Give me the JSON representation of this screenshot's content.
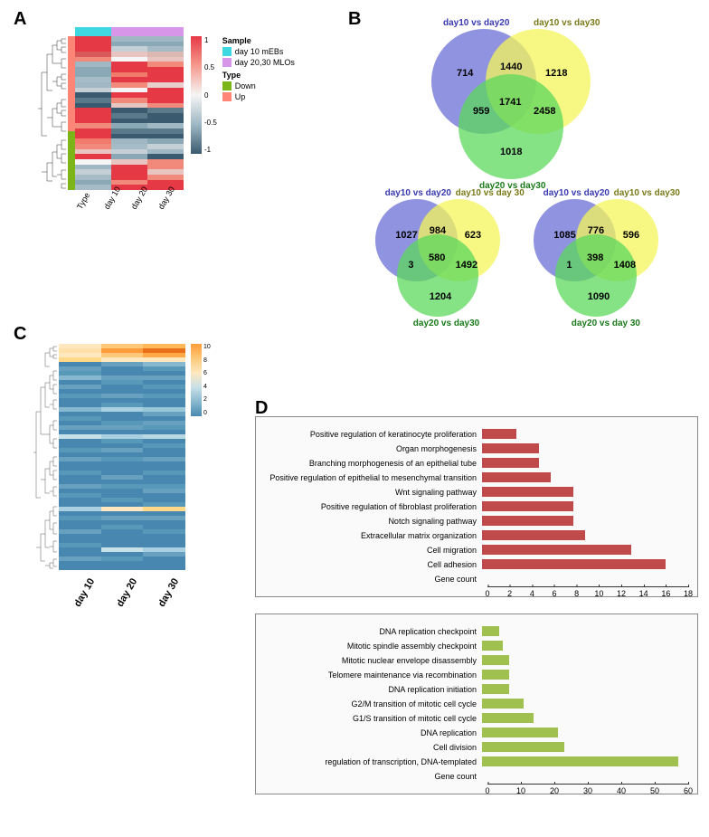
{
  "panelA": {
    "label": "A",
    "sample_bar_colors": [
      "#40d8e0",
      "#d896e8",
      "#d896e8"
    ],
    "x_labels": [
      "Type",
      "day 10",
      "day 20",
      "day 30"
    ],
    "legend": {
      "title_sample": "Sample",
      "sample_items": [
        {
          "label": "day 10 mEBs",
          "color": "#40d8e0"
        },
        {
          "label": "day 20,30 MLOs",
          "color": "#d896e8"
        }
      ],
      "title_type": "Type",
      "type_items": [
        {
          "label": "Down",
          "color": "#7cb518"
        },
        {
          "label": "Up",
          "color": "#ff8577"
        }
      ],
      "scale_values": [
        "1",
        "0.5",
        "0",
        "-0.5",
        "-1"
      ],
      "scale_colors": [
        "#e63946",
        "#f59a8e",
        "#f5f5f5",
        "#9fb8c4",
        "#3a5a70"
      ]
    },
    "type_bar_segments": [
      {
        "color": "#ff8577",
        "height": 62
      },
      {
        "color": "#7cb518",
        "height": 38
      }
    ],
    "heatmap_rows": [
      [
        "#e63946",
        "#9fb8c4",
        "#9fb8c4"
      ],
      [
        "#e63946",
        "#8aa8b5",
        "#8aa8b5"
      ],
      [
        "#e63946",
        "#c4d0d6",
        "#a5bcc7"
      ],
      [
        "#d95a5a",
        "#e8c5c0",
        "#dcb8b3"
      ],
      [
        "#f28a7c",
        "#f5f5f5",
        "#e8c5c0"
      ],
      [
        "#9fb8c4",
        "#e63946",
        "#f28a7c"
      ],
      [
        "#8aa8b5",
        "#e63946",
        "#e63946"
      ],
      [
        "#8aa8b5",
        "#f07a6c",
        "#e63946"
      ],
      [
        "#a5bcc7",
        "#e63946",
        "#e63946"
      ],
      [
        "#9fb8c4",
        "#f28a7c",
        "#e8d0cc"
      ],
      [
        "#c4d0d6",
        "#f5f5f5",
        "#e63946"
      ],
      [
        "#3a5a70",
        "#e63946",
        "#e63946"
      ],
      [
        "#5a7a8a",
        "#f28a7c",
        "#e63946"
      ],
      [
        "#3a5a70",
        "#e8c5c0",
        "#f28a7c"
      ],
      [
        "#e63946",
        "#3a5a70",
        "#5a7a8a"
      ],
      [
        "#e63946",
        "#5a7a8a",
        "#3a5a70"
      ],
      [
        "#e63946",
        "#3a5a70",
        "#3a5a70"
      ],
      [
        "#f28a7c",
        "#8aa8b5",
        "#9fb8c4"
      ],
      [
        "#e63946",
        "#5a7a8a",
        "#5a7a8a"
      ],
      [
        "#e63946",
        "#3a5a70",
        "#3a5a70"
      ],
      [
        "#f07a6c",
        "#9fb8c4",
        "#8aa8b5"
      ],
      [
        "#f28a7c",
        "#a5bcc7",
        "#c4d0d6"
      ],
      [
        "#e8c5c0",
        "#c4d0d6",
        "#9fb8c4"
      ],
      [
        "#e63946",
        "#8aa8b5",
        "#3a5a70"
      ],
      [
        "#f5f5f5",
        "#e8c5c0",
        "#f28a7c"
      ],
      [
        "#9fb8c4",
        "#e63946",
        "#f28a7c"
      ],
      [
        "#c4d0d6",
        "#e63946",
        "#e8c5c0"
      ],
      [
        "#a5bcc7",
        "#e63946",
        "#f28a7c"
      ],
      [
        "#8aa8b5",
        "#f28a7c",
        "#e63946"
      ],
      [
        "#a5bcc7",
        "#e63946",
        "#e63946"
      ]
    ]
  },
  "panelB": {
    "label": "B",
    "circle_colors": {
      "blue": "#6b6fd4",
      "yellow": "#f4f45a",
      "green": "#5cd85c"
    },
    "label_colors": {
      "blue": "#3a3ab0",
      "yellow": "#7a7a1a",
      "green": "#1a7a1a"
    },
    "venn1": {
      "titles": {
        "top_left": "day10 vs day20",
        "top_right": "day10 vs day30",
        "bottom": "day20 vs day30"
      },
      "values": {
        "a": "714",
        "b": "1218",
        "c": "1018",
        "ab": "1440",
        "ac": "959",
        "bc": "2458",
        "abc": "1741"
      }
    },
    "venn2": {
      "titles": {
        "top_left": "day10 vs day20",
        "top_right": "day10 vs day 30",
        "bottom": "day20 vs day30"
      },
      "values": {
        "a": "1027",
        "b": "623",
        "c": "1204",
        "ab": "984",
        "ac": "3",
        "bc": "1492",
        "abc": "580"
      }
    },
    "venn3": {
      "titles": {
        "top_left": "day10 vs day20",
        "top_right": "day10 vs day30",
        "bottom": "day20 vs day 30"
      },
      "values": {
        "a": "1085",
        "b": "596",
        "c": "1090",
        "ab": "776",
        "ac": "1",
        "bc": "1408",
        "abc": "398"
      }
    }
  },
  "panelC": {
    "label": "C",
    "x_labels": [
      "day 10",
      "day 20",
      "day 30"
    ],
    "legend_scale": {
      "values": [
        "10",
        "8",
        "6",
        "4",
        "2",
        "0"
      ],
      "colors": [
        "#ff9c3a",
        "#ffc878",
        "#ffe8c0",
        "#c8e0e8",
        "#88b8d0",
        "#4888b0"
      ]
    },
    "heatmap_rows": [
      [
        "#ffe8c0",
        "#ffc878",
        "#ffb858"
      ],
      [
        "#ffe0a8",
        "#ff9c3a",
        "#e8701a"
      ],
      [
        "#ffe8c0",
        "#ffc878",
        "#ffa848"
      ],
      [
        "#ffd888",
        "#ffe8c0",
        "#ffe8c0"
      ],
      [
        "#4888b0",
        "#68a0c0",
        "#88b8d0"
      ],
      [
        "#68a0c0",
        "#4888b0",
        "#5898b8"
      ],
      [
        "#5898b8",
        "#4888b0",
        "#4888b0"
      ],
      [
        "#88b8d0",
        "#68a0c0",
        "#68a0c0"
      ],
      [
        "#4888b0",
        "#5898b8",
        "#4888b0"
      ],
      [
        "#68a0c0",
        "#4888b0",
        "#5898b8"
      ],
      [
        "#4888b0",
        "#4888b0",
        "#4888b0"
      ],
      [
        "#5898b8",
        "#68a0c0",
        "#5898b8"
      ],
      [
        "#4888b0",
        "#4888b0",
        "#4888b0"
      ],
      [
        "#4888b0",
        "#5898b8",
        "#4888b0"
      ],
      [
        "#88b8d0",
        "#a8d0e0",
        "#98c8d8"
      ],
      [
        "#4888b0",
        "#4888b0",
        "#68a0c0"
      ],
      [
        "#5898b8",
        "#4888b0",
        "#4888b0"
      ],
      [
        "#4888b0",
        "#5898b8",
        "#68a0c0"
      ],
      [
        "#68a0c0",
        "#68a0c0",
        "#5898b8"
      ],
      [
        "#4888b0",
        "#4888b0",
        "#4888b0"
      ],
      [
        "#c8e0e8",
        "#a8d0e0",
        "#b8d8e4"
      ],
      [
        "#4888b0",
        "#5898b8",
        "#4888b0"
      ],
      [
        "#4888b0",
        "#4888b0",
        "#5898b8"
      ],
      [
        "#5898b8",
        "#68a0c0",
        "#4888b0"
      ],
      [
        "#4888b0",
        "#4888b0",
        "#4888b0"
      ],
      [
        "#68a0c0",
        "#5898b8",
        "#68a0c0"
      ],
      [
        "#4888b0",
        "#4888b0",
        "#4888b0"
      ],
      [
        "#4888b0",
        "#4888b0",
        "#4888b0"
      ],
      [
        "#5898b8",
        "#4888b0",
        "#5898b8"
      ],
      [
        "#4888b0",
        "#68a0c0",
        "#4888b0"
      ],
      [
        "#4888b0",
        "#4888b0",
        "#4888b0"
      ],
      [
        "#68a0c0",
        "#5898b8",
        "#5898b8"
      ],
      [
        "#4888b0",
        "#4888b0",
        "#68a0c0"
      ],
      [
        "#5898b8",
        "#4888b0",
        "#4888b0"
      ],
      [
        "#4888b0",
        "#5898b8",
        "#4888b0"
      ],
      [
        "#4888b0",
        "#4888b0",
        "#5898b8"
      ],
      [
        "#a8d0e0",
        "#ffe8c0",
        "#ffd888"
      ],
      [
        "#4888b0",
        "#4888b0",
        "#4888b0"
      ],
      [
        "#5898b8",
        "#68a0c0",
        "#68a0c0"
      ],
      [
        "#4888b0",
        "#4888b0",
        "#4888b0"
      ],
      [
        "#4888b0",
        "#5898b8",
        "#4888b0"
      ],
      [
        "#68a0c0",
        "#4888b0",
        "#5898b8"
      ],
      [
        "#4888b0",
        "#4888b0",
        "#4888b0"
      ],
      [
        "#4888b0",
        "#4888b0",
        "#4888b0"
      ],
      [
        "#5898b8",
        "#4888b0",
        "#4888b0"
      ],
      [
        "#4888b0",
        "#c8e0e8",
        "#a8d0e0"
      ],
      [
        "#4888b0",
        "#4888b0",
        "#68a0c0"
      ],
      [
        "#68a0c0",
        "#5898b8",
        "#4888b0"
      ],
      [
        "#4888b0",
        "#4888b0",
        "#4888b0"
      ],
      [
        "#4888b0",
        "#4888b0",
        "#4888b0"
      ]
    ]
  },
  "panelD": {
    "label": "D",
    "chart1": {
      "bar_color": "#c04a4a",
      "x_max": 18,
      "x_ticks": [
        0,
        2,
        4,
        6,
        8,
        10,
        12,
        14,
        16,
        18
      ],
      "x_label": "Gene count",
      "bars": [
        {
          "label": "Positive regulation of keratinocyte proliferation",
          "value": 3
        },
        {
          "label": "Organ morphogenesis",
          "value": 5
        },
        {
          "label": "Branching morphogenesis of an epithelial tube",
          "value": 5
        },
        {
          "label": "Positive regulation of epithelial to mesenchymal transition",
          "value": 6
        },
        {
          "label": "Wnt signaling pathway",
          "value": 8
        },
        {
          "label": "Positive regulation of fibroblast proliferation",
          "value": 8
        },
        {
          "label": "Notch signaling pathway",
          "value": 8
        },
        {
          "label": "Extracellular matrix organization",
          "value": 9
        },
        {
          "label": "Cell migration",
          "value": 13
        },
        {
          "label": "Cell adhesion",
          "value": 16
        }
      ]
    },
    "chart2": {
      "bar_color": "#a0c050",
      "x_max": 60,
      "x_ticks": [
        0,
        10,
        20,
        30,
        40,
        50,
        60
      ],
      "x_label": "Gene count",
      "bars": [
        {
          "label": "DNA replication checkpoint",
          "value": 5
        },
        {
          "label": "Mitotic spindle assembly checkpoint",
          "value": 6
        },
        {
          "label": "Mitotic nuclear envelope disassembly",
          "value": 8
        },
        {
          "label": "Telomere maintenance via recombination",
          "value": 8
        },
        {
          "label": "DNA replication initiation",
          "value": 8
        },
        {
          "label": "G2/M transition of mitotic cell cycle",
          "value": 12
        },
        {
          "label": "G1/S transition of mitotic cell cycle",
          "value": 15
        },
        {
          "label": "DNA replication",
          "value": 22
        },
        {
          "label": "Cell division",
          "value": 24
        },
        {
          "label": "regulation of transcription, DNA-templated",
          "value": 57
        }
      ]
    }
  }
}
